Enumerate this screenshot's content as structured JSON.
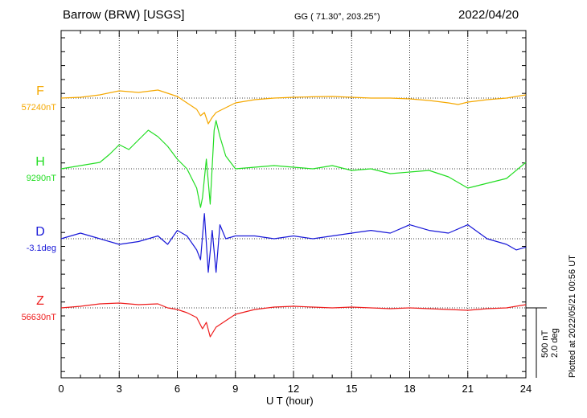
{
  "header": {
    "station": "Barrow (BRW)  [USGS]",
    "coords": "GG ( 71.30°, 203.25°)",
    "date": "2022/04/20"
  },
  "footer": {
    "plotted": "Plotted at 2022/05/21 00:56 UT"
  },
  "scale": {
    "nt": "500 nT",
    "deg": "2.0 deg"
  },
  "chart_data": {
    "type": "line",
    "xlabel": "U T (hour)",
    "xlim": [
      0,
      24
    ],
    "xticks": [
      "0",
      "3",
      "6",
      "9",
      "12",
      "15",
      "18",
      "21",
      "24"
    ],
    "ylabel": "",
    "grid": true,
    "series": [
      {
        "name": "F",
        "baseline_label": "57240nT",
        "color": "#f5a800",
        "x": [
          0,
          1,
          2,
          3,
          4,
          5,
          5.5,
          6,
          6.5,
          7,
          7.2,
          7.4,
          7.6,
          7.8,
          8,
          8.5,
          9,
          10,
          11,
          12,
          13,
          14,
          15,
          16,
          17,
          18,
          19,
          20,
          20.5,
          21,
          22,
          23,
          24
        ],
        "y": [
          0,
          5,
          20,
          45,
          35,
          50,
          30,
          10,
          -30,
          -70,
          -110,
          -90,
          -160,
          -120,
          -90,
          -60,
          -30,
          -10,
          0,
          5,
          8,
          10,
          5,
          0,
          0,
          -5,
          -15,
          -30,
          -40,
          -25,
          -10,
          0,
          20
        ]
      },
      {
        "name": "H",
        "baseline_label": "9290nT",
        "color": "#22dd22",
        "x": [
          0,
          1,
          2,
          2.5,
          3,
          3.5,
          4,
          4.5,
          5,
          5.5,
          6,
          6.5,
          7,
          7.2,
          7.3,
          7.5,
          7.7,
          7.9,
          8,
          8.2,
          8.5,
          9,
          10,
          11,
          12,
          13,
          14,
          15,
          16,
          17,
          18,
          19,
          20,
          21,
          22,
          23,
          24
        ],
        "y": [
          0,
          20,
          40,
          90,
          150,
          120,
          180,
          240,
          200,
          140,
          60,
          0,
          -120,
          -240,
          -180,
          60,
          -220,
          240,
          300,
          200,
          80,
          0,
          10,
          20,
          10,
          0,
          20,
          -10,
          0,
          -30,
          -20,
          -10,
          -50,
          -120,
          -90,
          -60,
          40
        ]
      },
      {
        "name": "D",
        "baseline_label": "-3.1deg",
        "color": "#1818d8",
        "x": [
          0,
          1,
          2,
          3,
          4,
          5,
          5.5,
          6,
          6.5,
          7,
          7.2,
          7.4,
          7.6,
          7.8,
          8,
          8.2,
          8.5,
          9,
          10,
          11,
          12,
          13,
          14,
          15,
          16,
          17,
          18,
          19,
          20,
          21,
          22,
          23,
          23.5,
          24
        ],
        "y": [
          0,
          0.08,
          0,
          -0.08,
          -0.04,
          0.04,
          -0.08,
          0.12,
          0.04,
          -0.16,
          -0.3,
          0.36,
          -0.48,
          0.12,
          -0.48,
          0.2,
          0,
          0.04,
          0.04,
          0,
          0.04,
          0,
          0.04,
          0.08,
          0.12,
          0.08,
          0.2,
          0.12,
          0.08,
          0.2,
          0,
          -0.08,
          -0.16,
          -0.12
        ]
      },
      {
        "name": "Z",
        "baseline_label": "56630nT",
        "color": "#ee1c1c",
        "x": [
          0,
          1,
          2,
          3,
          4,
          5,
          5.5,
          6,
          6.5,
          7,
          7.3,
          7.5,
          7.7,
          8,
          8.5,
          9,
          10,
          11,
          12,
          13,
          14,
          15,
          16,
          17,
          18,
          19,
          20,
          21,
          22,
          23,
          24
        ],
        "y": [
          0,
          10,
          25,
          30,
          20,
          25,
          0,
          -10,
          -30,
          -60,
          -130,
          -90,
          -180,
          -120,
          -80,
          -40,
          -10,
          5,
          10,
          5,
          0,
          5,
          0,
          -5,
          0,
          -5,
          -10,
          -15,
          -5,
          0,
          20
        ]
      }
    ]
  }
}
